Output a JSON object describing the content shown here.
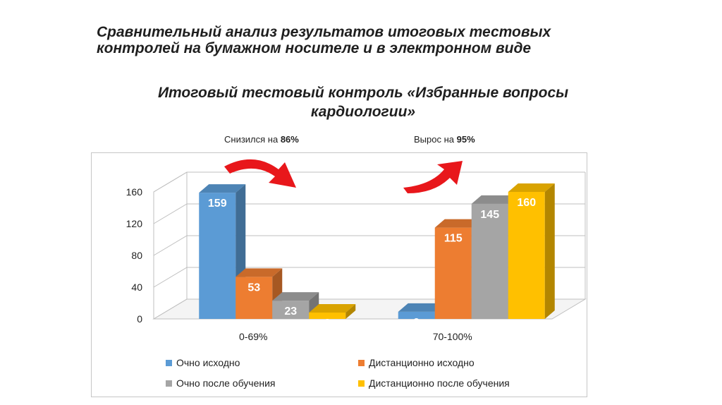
{
  "slide_title": "Сравнительный анализ результатов итоговых тестовых контролей на бумажном носителе и в электронном виде",
  "chart_data": {
    "type": "bar",
    "title": "Итоговый тестовый контроль «Избранные вопросы кардиологии»",
    "categories": [
      "0-69%",
      "70-100%"
    ],
    "series": [
      {
        "name": "Очно исходно",
        "values": [
          159,
          9
        ],
        "color": "#5b9bd5"
      },
      {
        "name": "Дистанционно исходно",
        "values": [
          53,
          115
        ],
        "color": "#ed7d31"
      },
      {
        "name": "Очно после обучения",
        "values": [
          23,
          145
        ],
        "color": "#a5a5a5"
      },
      {
        "name": "Дистанционно после обучения",
        "values": [
          8,
          160
        ],
        "color": "#ffc000"
      }
    ],
    "yticks": [
      0,
      40,
      80,
      120,
      160
    ],
    "ylim": [
      0,
      160
    ],
    "legend_position": "bottom",
    "grid": true,
    "three_d": true
  },
  "annotations": {
    "left": {
      "prefix": "Снизился на ",
      "value": "86%"
    },
    "right": {
      "prefix": "Вырос на ",
      "value": "95%"
    }
  },
  "arrow_color": "#e8171b"
}
